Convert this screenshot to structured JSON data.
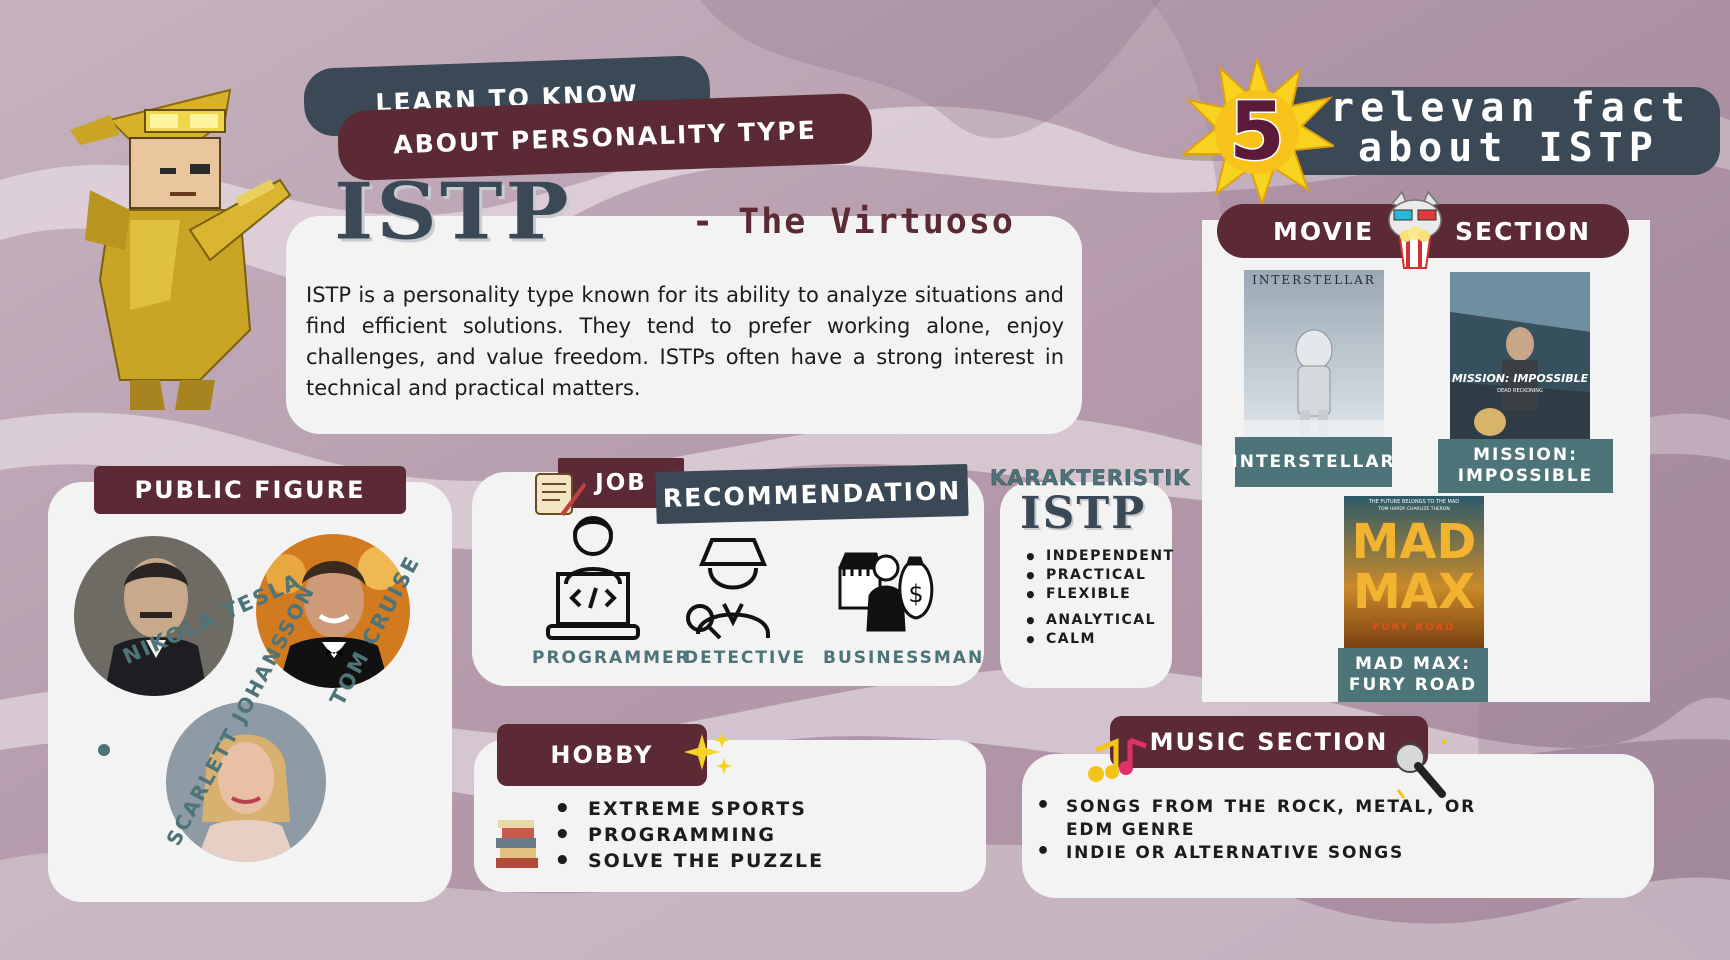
{
  "header": {
    "learn": "LEARN TO KNOW",
    "about": "ABOUT PERSONALITY TYPE",
    "type": "ISTP",
    "nickname": "- The Virtuoso"
  },
  "intro": {
    "text": "ISTP is a personality type known for its ability to analyze situations and find efficient solutions. They tend to prefer working alone, enjoy challenges, and value freedom. ISTPs often have a strong interest in technical and practical matters."
  },
  "facts": {
    "number": "5",
    "line1": "relevan fact",
    "line2": "about ISTP"
  },
  "movie": {
    "label_left": "MOVIE",
    "label_right": "SECTION",
    "items": [
      {
        "title": "INTERSTELLAR",
        "poster_text": "INTERSTELLAR"
      },
      {
        "title_line1": "MISSION:",
        "title_line2": "IMPOSSIBLE",
        "poster_text": "MISSION: IMPOSSIBLE",
        "poster_sub": "DEAD RECKONING"
      },
      {
        "title_line1": "MAD MAX:",
        "title_line2": "FURY ROAD",
        "poster_top": "THE FUTURE BELONGS TO THE MAD",
        "poster_names": "TOM HARDY   CHARLIZE THERON",
        "poster_word1": "MAD",
        "poster_word2": "MAX",
        "poster_sub": "FURY ROAD"
      }
    ]
  },
  "public_figure": {
    "title": "PUBLIC FIGURE",
    "people": [
      "NIKOLA TESLA",
      "TOM CRUISE",
      "SCARLETT JOHANSSON"
    ]
  },
  "job": {
    "tag": "JOB",
    "title": "RECOMMENDATION",
    "items": [
      "PROGRAMMER",
      "DETECTIVE",
      "BUSINESSMAN"
    ]
  },
  "karakteristik": {
    "title": "KARAKTERISTIK",
    "type": "ISTP",
    "traits": [
      "INDEPENDENT",
      "PRACTICAL",
      "FLEXIBLE",
      "ANALYTICAL",
      "CALM"
    ]
  },
  "hobby": {
    "title": "HOBBY",
    "items": [
      "EXTREME SPORTS",
      "PROGRAMMING",
      "SOLVE THE PUZZLE"
    ]
  },
  "music": {
    "title": "MUSIC SECTION",
    "items": [
      "SONGS FROM THE ROCK, METAL, OR",
      "EDM GENRE",
      "INDIE OR ALTERNATIVE SONGS"
    ]
  },
  "colors": {
    "maroon": "#5b2a34",
    "slate": "#3b4856",
    "teal": "#4d7478",
    "card": "#f3f3f3",
    "gold": "#f5c21a"
  },
  "icons": [
    "character-illustration",
    "starburst-icon",
    "cat-popcorn-icon",
    "scroll-quill-icon",
    "programmer-icon",
    "detective-icon",
    "businessman-icon",
    "sparkle-icon",
    "books-icon",
    "music-notes-icon",
    "microphone-icon"
  ]
}
